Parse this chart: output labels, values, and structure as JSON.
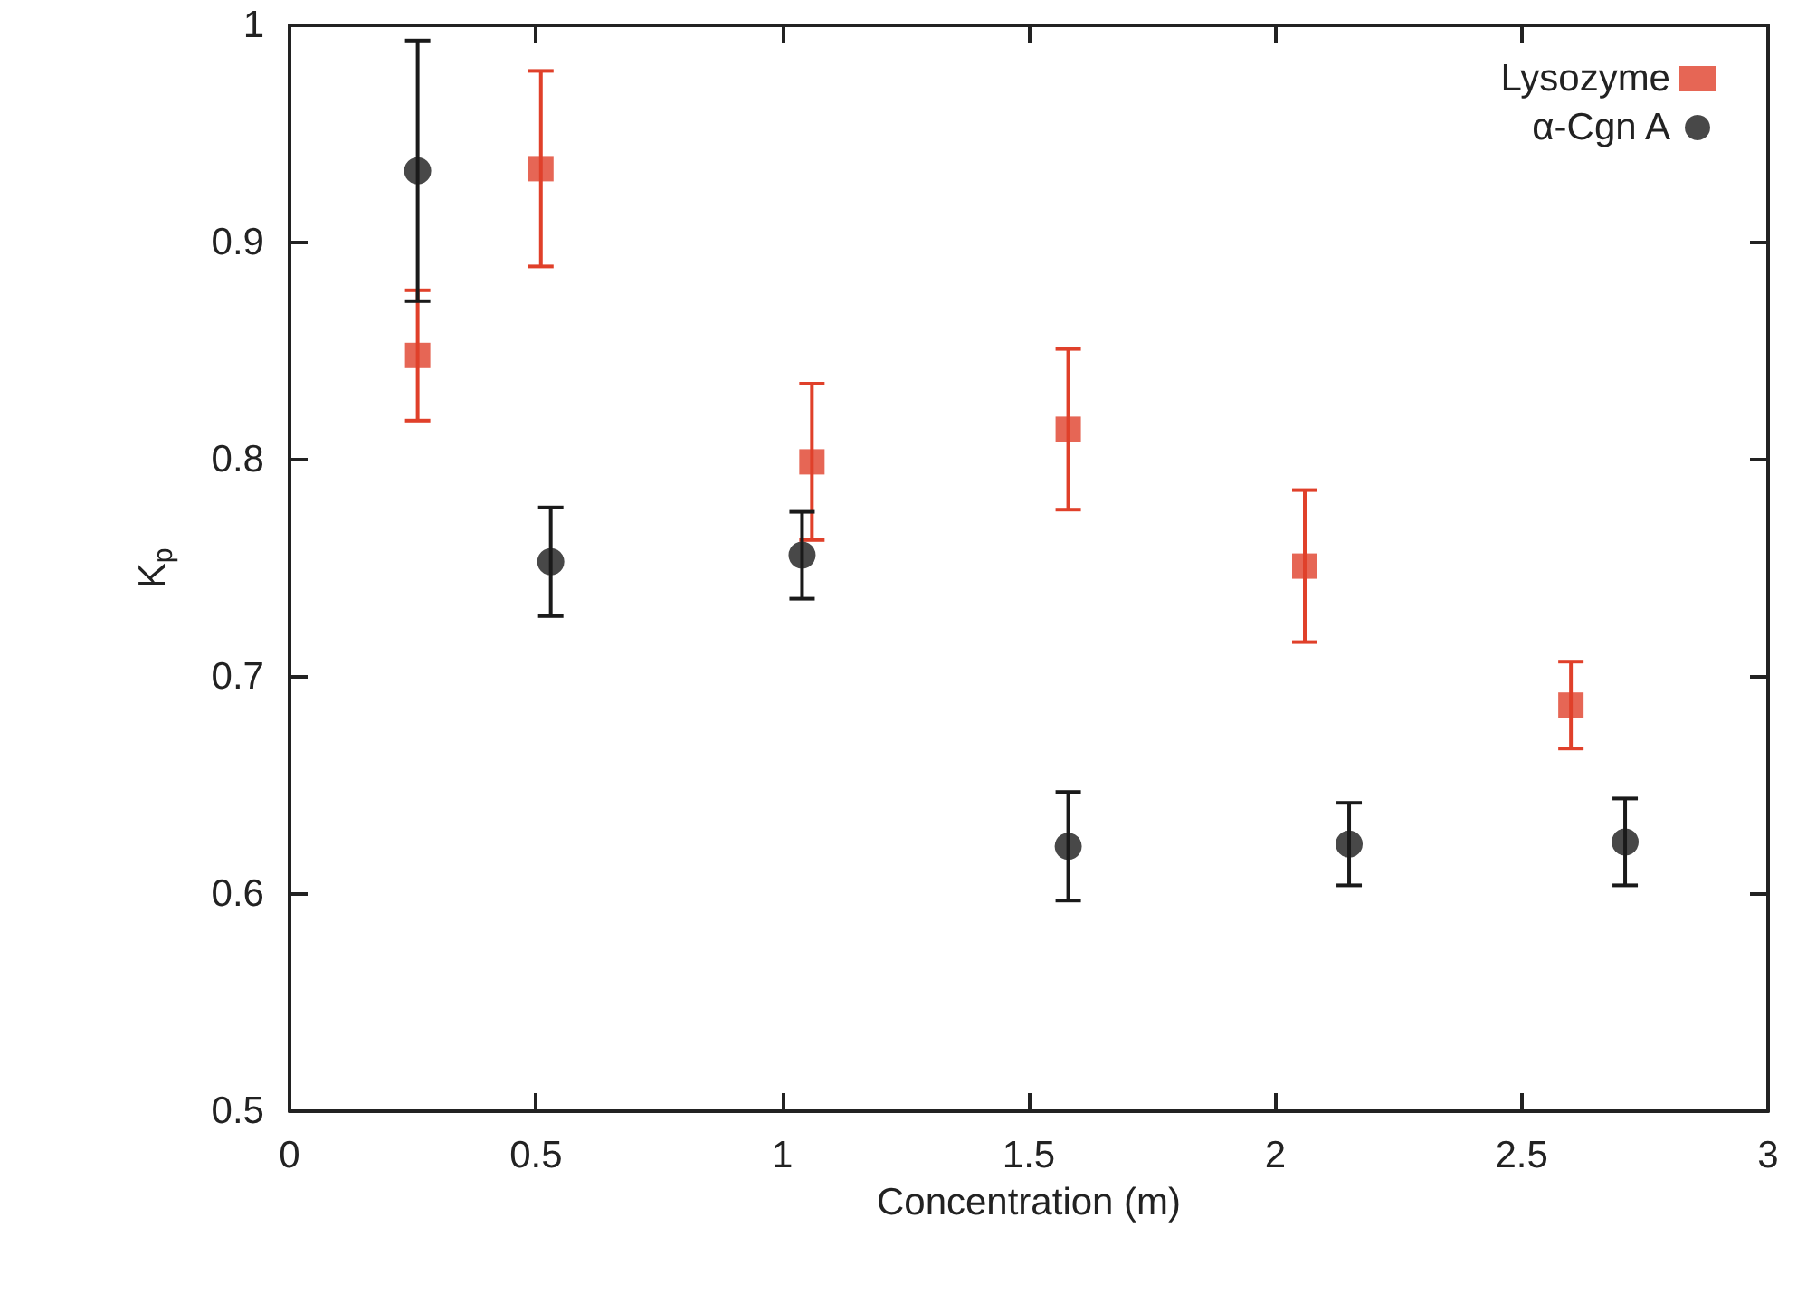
{
  "chart_data": {
    "type": "scatter",
    "xlabel": "Concentration (m)",
    "ylabel": "K$_{p}$",
    "xlim": [
      0,
      3
    ],
    "xticks": [
      0,
      0.5,
      1,
      1.5,
      2,
      2.5,
      3
    ],
    "ylim": [
      0.5,
      1
    ],
    "yticks": [
      0.5,
      0.6,
      0.7,
      0.8,
      0.9,
      1
    ],
    "grid": false,
    "legend": "top right",
    "series": [
      {
        "name": "Lysozyme",
        "color": "#e0402a",
        "marker": "square",
        "x": [
          0.26,
          0.51,
          1.06,
          1.58,
          2.06,
          2.6
        ],
        "values": [
          0.848,
          0.934,
          0.799,
          0.814,
          0.751,
          0.687
        ],
        "errors": [
          0.03,
          0.045,
          0.036,
          0.037,
          0.035,
          0.02
        ]
      },
      {
        "name": "α-Cgn A",
        "color": "#1a1a1a",
        "marker": "circle",
        "x": [
          0.26,
          0.53,
          1.04,
          1.58,
          2.15,
          2.71
        ],
        "values": [
          0.933,
          0.753,
          0.756,
          0.622,
          0.623,
          0.624
        ],
        "errors": [
          0.06,
          0.025,
          0.02,
          0.025,
          0.019,
          0.02
        ]
      }
    ]
  }
}
